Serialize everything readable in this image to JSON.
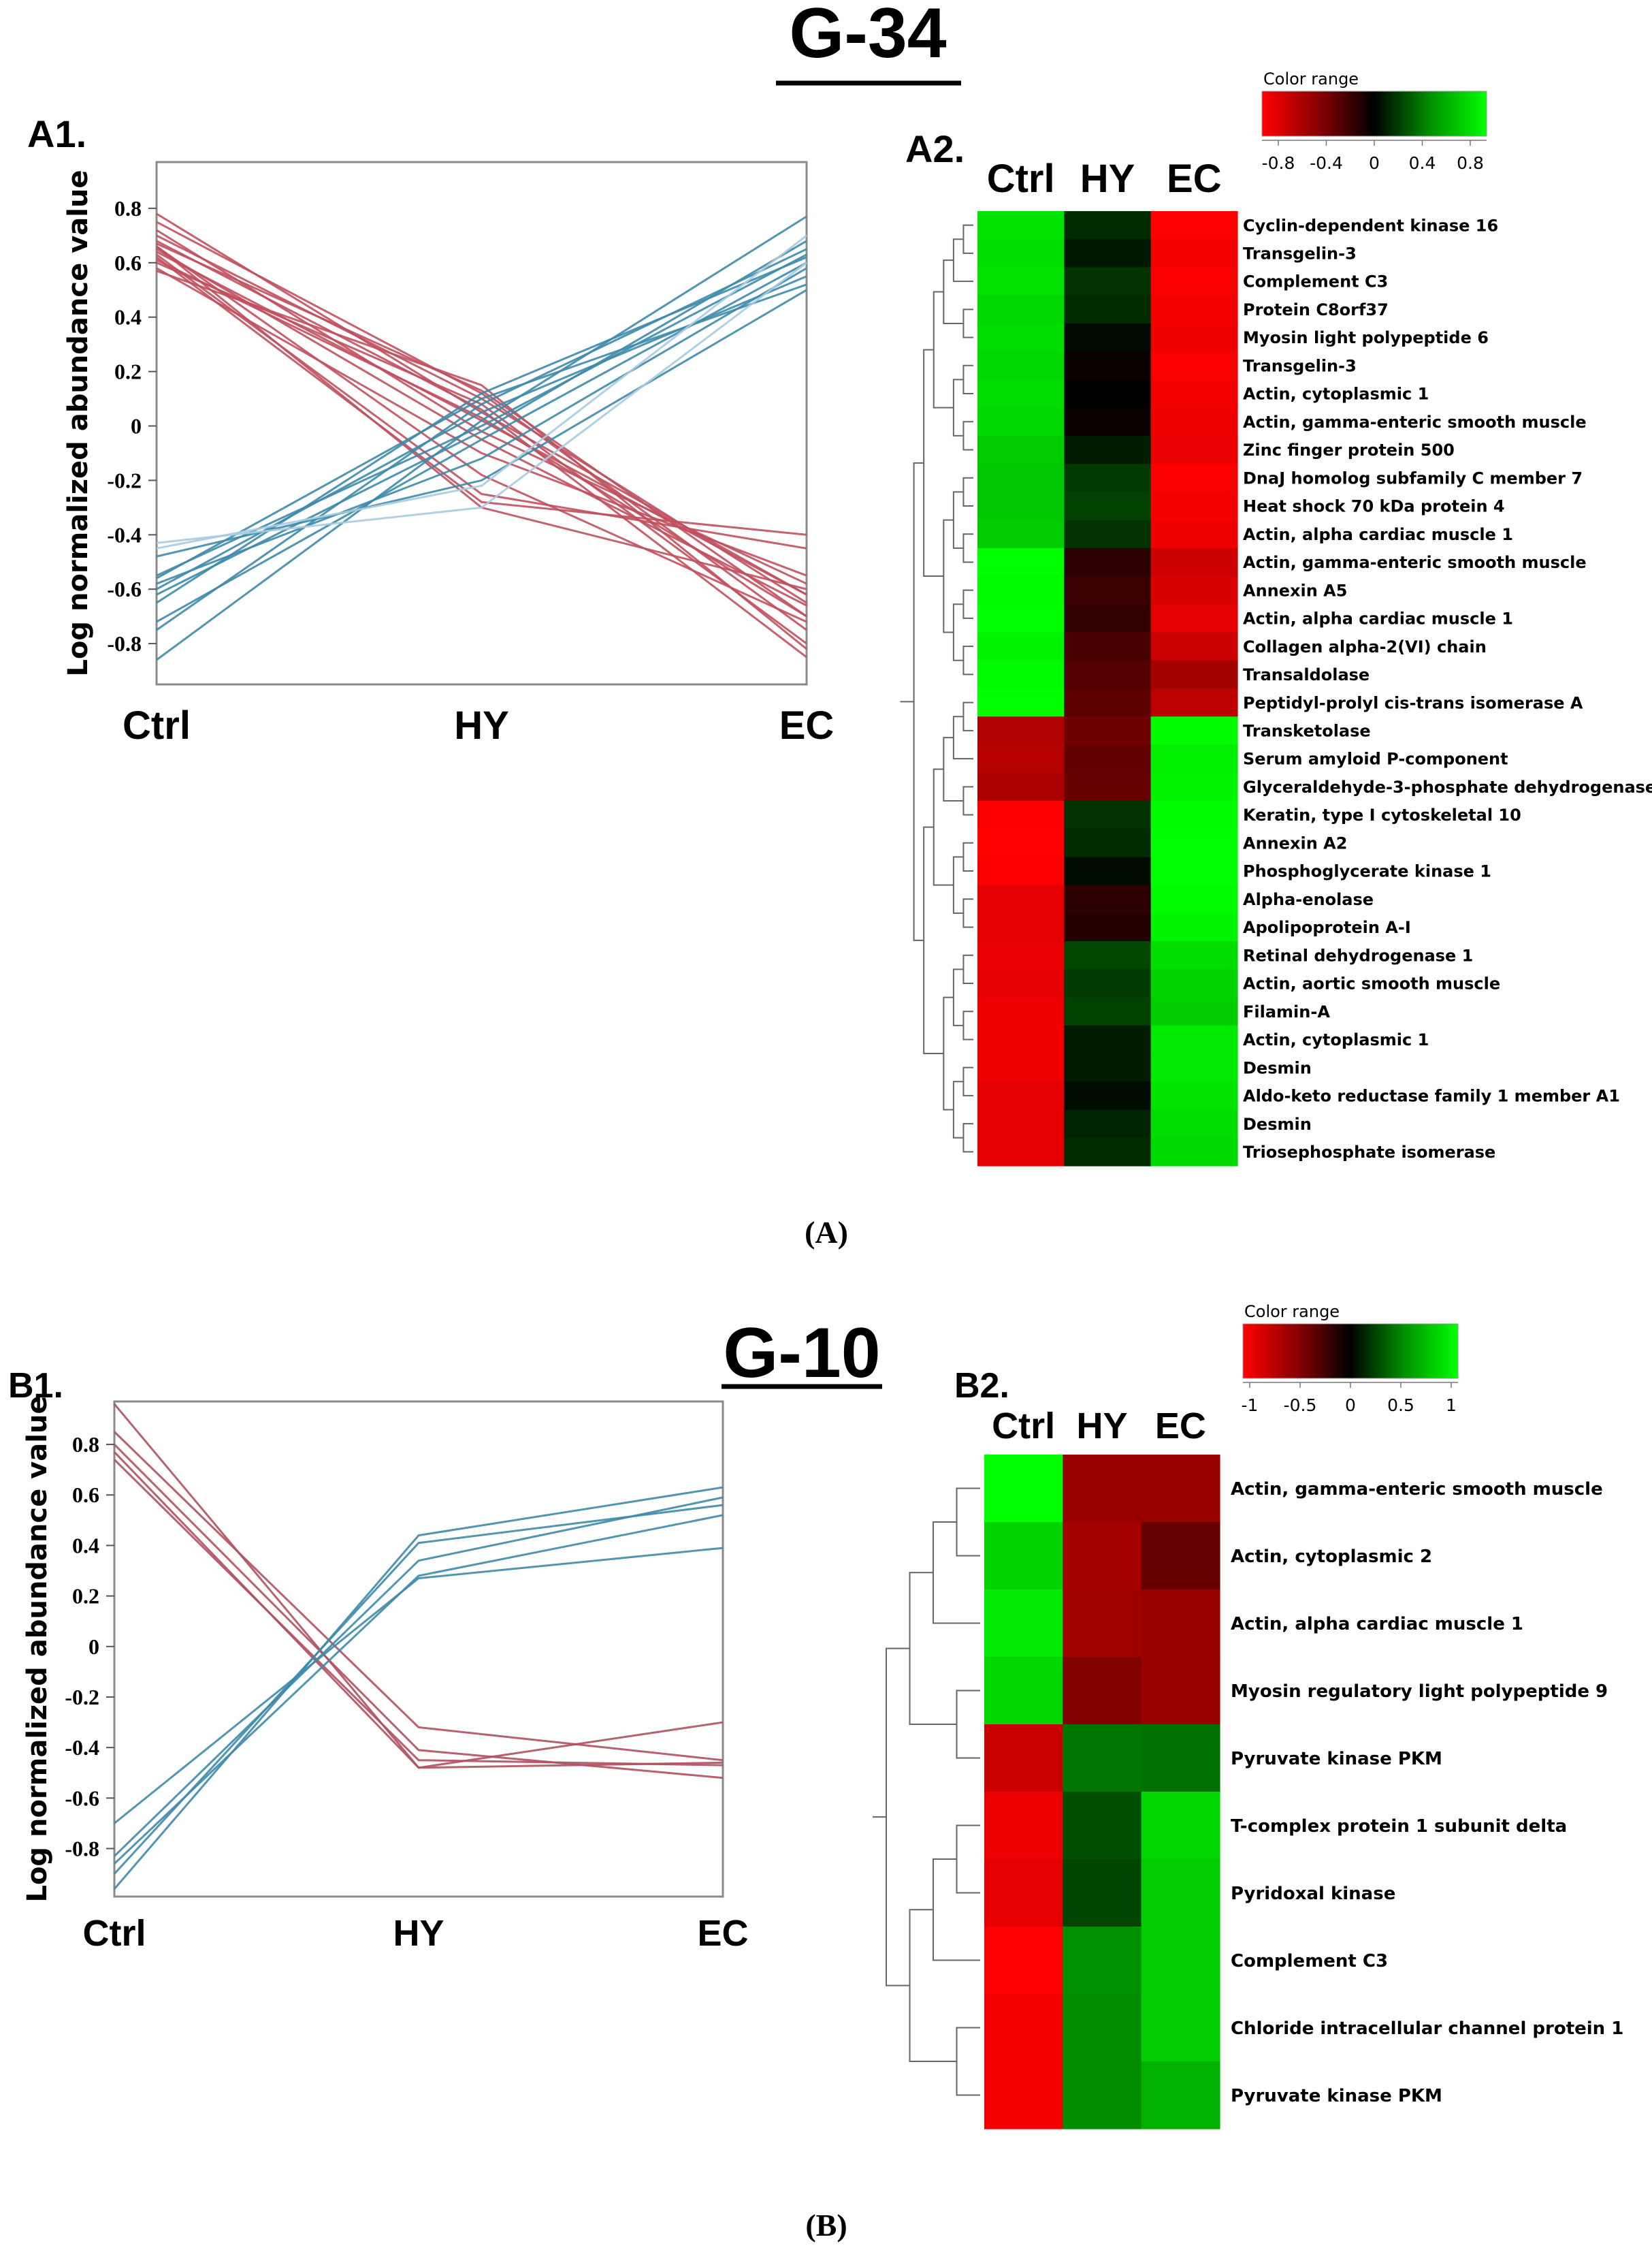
{
  "figure": {
    "panel_A_caption": "(A)",
    "panel_B_caption": "(B)"
  },
  "chart_data": [
    {
      "id": "A1",
      "type": "line",
      "group_title": "G-34",
      "panel_label": "A1.",
      "xlabel": "",
      "ylabel": "Log normalized abundance value",
      "categories": [
        "Ctrl",
        "HY",
        "EC"
      ],
      "ylim": [
        -0.95,
        0.97
      ],
      "yticks": [
        "0.8",
        "0.6",
        "0.4",
        "0.2",
        "0",
        "-0.2",
        "-0.4",
        "-0.6",
        "-0.8"
      ],
      "colors": {
        "decreasing": "#c0505e",
        "increasing": "#3d8aaa",
        "increasing_light": "#a9cbe0"
      },
      "series": [
        {
          "group": "decreasing",
          "values": [
            0.78,
            0.05,
            -0.62
          ]
        },
        {
          "group": "decreasing",
          "values": [
            0.75,
            0.12,
            -0.75
          ]
        },
        {
          "group": "decreasing",
          "values": [
            0.72,
            -0.02,
            -0.58
          ]
        },
        {
          "group": "decreasing",
          "values": [
            0.7,
            0.1,
            -0.65
          ]
        },
        {
          "group": "decreasing",
          "values": [
            0.68,
            0.06,
            -0.85
          ]
        },
        {
          "group": "decreasing",
          "values": [
            0.67,
            0.13,
            -0.7
          ]
        },
        {
          "group": "decreasing",
          "values": [
            0.66,
            -0.18,
            -0.72
          ]
        },
        {
          "group": "decreasing",
          "values": [
            0.65,
            -0.05,
            -0.66
          ]
        },
        {
          "group": "decreasing",
          "values": [
            0.64,
            0.02,
            -0.62
          ]
        },
        {
          "group": "decreasing",
          "values": [
            0.63,
            -0.25,
            -0.45
          ]
        },
        {
          "group": "decreasing",
          "values": [
            0.62,
            -0.28,
            -0.4
          ]
        },
        {
          "group": "decreasing",
          "values": [
            0.6,
            0.08,
            -0.8
          ]
        },
        {
          "group": "decreasing",
          "values": [
            0.58,
            -0.1,
            -0.55
          ]
        },
        {
          "group": "decreasing",
          "values": [
            0.57,
            0.15,
            -0.82
          ]
        },
        {
          "group": "decreasing",
          "values": [
            0.66,
            -0.3,
            -0.6
          ]
        },
        {
          "group": "decreasing",
          "values": [
            0.61,
            0.03,
            -0.7
          ]
        },
        {
          "group": "increasing",
          "values": [
            -0.86,
            0.02,
            0.77
          ]
        },
        {
          "group": "increasing",
          "values": [
            -0.75,
            0.08,
            0.65
          ]
        },
        {
          "group": "increasing",
          "values": [
            -0.72,
            -0.05,
            0.6
          ]
        },
        {
          "group": "increasing",
          "values": [
            -0.65,
            0.12,
            0.62
          ]
        },
        {
          "group": "increasing",
          "values": [
            -0.62,
            -0.02,
            0.68
          ]
        },
        {
          "group": "increasing",
          "values": [
            -0.6,
            0.05,
            0.55
          ]
        },
        {
          "group": "increasing",
          "values": [
            -0.58,
            -0.12,
            0.58
          ]
        },
        {
          "group": "increasing",
          "values": [
            -0.56,
            0.1,
            0.52
          ]
        },
        {
          "group": "increasing",
          "values": [
            -0.55,
            0.0,
            0.63
          ]
        },
        {
          "group": "increasing",
          "values": [
            -0.48,
            -0.2,
            0.5
          ]
        },
        {
          "group": "increasing_light",
          "values": [
            -0.45,
            -0.22,
            0.7
          ]
        },
        {
          "group": "increasing_light",
          "values": [
            -0.43,
            -0.3,
            0.6
          ]
        }
      ]
    },
    {
      "id": "A2",
      "type": "heatmap",
      "panel_label": "A2.",
      "columns": [
        "Ctrl",
        "HY",
        "EC"
      ],
      "legend_title": "Color range",
      "legend_ticks": [
        "-0.8",
        "-0.4",
        "0",
        "0.4",
        "0.8"
      ],
      "range": [
        -0.8,
        0.8
      ],
      "rows": [
        {
          "label": "Cyclin-dependent kinase 16",
          "values": [
            0.7,
            0.1,
            -0.8
          ]
        },
        {
          "label": "Transgelin-3",
          "values": [
            0.68,
            0.05,
            -0.76
          ]
        },
        {
          "label": "Complement C3",
          "values": [
            0.7,
            0.12,
            -0.78
          ]
        },
        {
          "label": "Protein C8orf37",
          "values": [
            0.66,
            0.1,
            -0.76
          ]
        },
        {
          "label": "Myosin light polypeptide 6",
          "values": [
            0.68,
            0.02,
            -0.74
          ]
        },
        {
          "label": "Transgelin-3",
          "values": [
            0.66,
            -0.02,
            -0.78
          ]
        },
        {
          "label": "Actin, cytoplasmic 1",
          "values": [
            0.68,
            0.0,
            -0.76
          ]
        },
        {
          "label": "Actin, gamma-enteric smooth muscle",
          "values": [
            0.66,
            -0.02,
            -0.74
          ]
        },
        {
          "label": "Zinc finger protein 500",
          "values": [
            0.62,
            0.06,
            -0.72
          ]
        },
        {
          "label": "DnaJ homolog subfamily C member 7",
          "values": [
            0.6,
            0.14,
            -0.78
          ]
        },
        {
          "label": "Heat shock 70 kDa protein 4",
          "values": [
            0.6,
            0.16,
            -0.76
          ]
        },
        {
          "label": "Actin, alpha cardiac muscle 1",
          "values": [
            0.62,
            0.12,
            -0.74
          ]
        },
        {
          "label": "Actin, gamma-enteric smooth muscle",
          "values": [
            0.8,
            -0.1,
            -0.62
          ]
        },
        {
          "label": "Annexin A5",
          "values": [
            0.78,
            -0.14,
            -0.66
          ]
        },
        {
          "label": "Actin, alpha cardiac muscle 1",
          "values": [
            0.8,
            -0.12,
            -0.7
          ]
        },
        {
          "label": "Collagen alpha-2(VI) chain",
          "values": [
            0.76,
            -0.18,
            -0.62
          ]
        },
        {
          "label": "Transaldolase",
          "values": [
            0.78,
            -0.22,
            -0.48
          ]
        },
        {
          "label": "Peptidyl-prolyl cis-trans isomerase A",
          "values": [
            0.8,
            -0.24,
            -0.56
          ]
        },
        {
          "label": "Transketolase",
          "values": [
            -0.52,
            -0.3,
            0.78
          ]
        },
        {
          "label": "Serum amyloid P-component",
          "values": [
            -0.54,
            -0.26,
            0.74
          ]
        },
        {
          "label": "Glyceraldehyde-3-phosphate dehydrogenase",
          "values": [
            -0.5,
            -0.28,
            0.76
          ]
        },
        {
          "label": "Keratin, type I cytoskeletal 10",
          "values": [
            -0.78,
            0.12,
            0.78
          ]
        },
        {
          "label": "Annexin A2",
          "values": [
            -0.9,
            0.1,
            0.8
          ]
        },
        {
          "label": "Phosphoglycerate kinase 1",
          "values": [
            -0.78,
            0.02,
            0.82
          ]
        },
        {
          "label": "Alpha-enolase",
          "values": [
            -0.7,
            -0.1,
            0.78
          ]
        },
        {
          "label": "Apolipoprotein A-I",
          "values": [
            -0.7,
            -0.08,
            0.76
          ]
        },
        {
          "label": "Retinal dehydrogenase 1",
          "values": [
            -0.72,
            0.18,
            0.68
          ]
        },
        {
          "label": "Actin, aortic smooth muscle",
          "values": [
            -0.7,
            0.14,
            0.64
          ]
        },
        {
          "label": "Filamin-A",
          "values": [
            -0.74,
            0.16,
            0.62
          ]
        },
        {
          "label": "Actin, cytoplasmic 1",
          "values": [
            -0.74,
            0.06,
            0.72
          ]
        },
        {
          "label": "Desmin",
          "values": [
            -0.74,
            0.06,
            0.72
          ]
        },
        {
          "label": "Aldo-keto reductase family 1 member A1",
          "values": [
            -0.7,
            0.02,
            0.7
          ]
        },
        {
          "label": "Desmin",
          "values": [
            -0.7,
            0.08,
            0.68
          ]
        },
        {
          "label": "Triosephosphate isomerase",
          "values": [
            -0.7,
            0.1,
            0.66
          ]
        }
      ]
    },
    {
      "id": "B1",
      "type": "line",
      "group_title": "G-10",
      "panel_label": "B1.",
      "xlabel": "",
      "ylabel": "Log normalized abundance value",
      "categories": [
        "Ctrl",
        "HY",
        "EC"
      ],
      "ylim": [
        -0.99,
        0.97
      ],
      "yticks": [
        "0.8",
        "0.6",
        "0.4",
        "0.2",
        "0",
        "-0.2",
        "-0.4",
        "-0.6",
        "-0.8"
      ],
      "colors": {
        "decreasing": "#b05060",
        "increasing": "#3d8aaa"
      },
      "series": [
        {
          "group": "decreasing",
          "values": [
            0.96,
            -0.48,
            -0.3
          ]
        },
        {
          "group": "decreasing",
          "values": [
            0.85,
            -0.32,
            -0.45
          ]
        },
        {
          "group": "decreasing",
          "values": [
            0.8,
            -0.41,
            -0.52
          ]
        },
        {
          "group": "decreasing",
          "values": [
            0.77,
            -0.48,
            -0.46
          ]
        },
        {
          "group": "decreasing",
          "values": [
            0.74,
            -0.45,
            -0.47
          ]
        },
        {
          "group": "increasing",
          "values": [
            -0.96,
            0.44,
            0.63
          ]
        },
        {
          "group": "increasing",
          "values": [
            -0.9,
            0.41,
            0.56
          ]
        },
        {
          "group": "increasing",
          "values": [
            -0.86,
            0.28,
            0.52
          ]
        },
        {
          "group": "increasing",
          "values": [
            -0.83,
            0.34,
            0.59
          ]
        },
        {
          "group": "increasing",
          "values": [
            -0.7,
            0.27,
            0.39
          ]
        }
      ]
    },
    {
      "id": "B2",
      "type": "heatmap",
      "panel_label": "B2.",
      "columns": [
        "Ctrl",
        "HY",
        "EC"
      ],
      "legend_title": "Color range",
      "legend_ticks": [
        "-1",
        "-0.5",
        "0",
        "0.5",
        "1"
      ],
      "range": [
        -1,
        1
      ],
      "rows": [
        {
          "label": "Actin, gamma-enteric smooth muscle",
          "values": [
            1.0,
            -0.55,
            -0.55
          ]
        },
        {
          "label": "Actin, cytoplasmic 2",
          "values": [
            0.8,
            -0.6,
            -0.35
          ]
        },
        {
          "label": "Actin, alpha cardiac muscle 1",
          "values": [
            0.9,
            -0.58,
            -0.55
          ]
        },
        {
          "label": "Myosin regulatory light polypeptide 9",
          "values": [
            0.82,
            -0.45,
            -0.55
          ]
        },
        {
          "label": "Pyruvate kinase PKM",
          "values": [
            -0.75,
            0.4,
            0.38
          ]
        },
        {
          "label": "T-complex protein 1 subunit delta",
          "values": [
            -0.92,
            0.25,
            0.82
          ]
        },
        {
          "label": "Pyridoxal kinase",
          "values": [
            -0.88,
            0.22,
            0.78
          ]
        },
        {
          "label": "Complement C3",
          "values": [
            -1.0,
            0.52,
            0.78
          ]
        },
        {
          "label": "Chloride intracellular channel protein 1",
          "values": [
            -0.95,
            0.5,
            0.78
          ]
        },
        {
          "label": "Pyruvate kinase PKM",
          "values": [
            -0.95,
            0.5,
            0.65
          ]
        }
      ]
    }
  ]
}
